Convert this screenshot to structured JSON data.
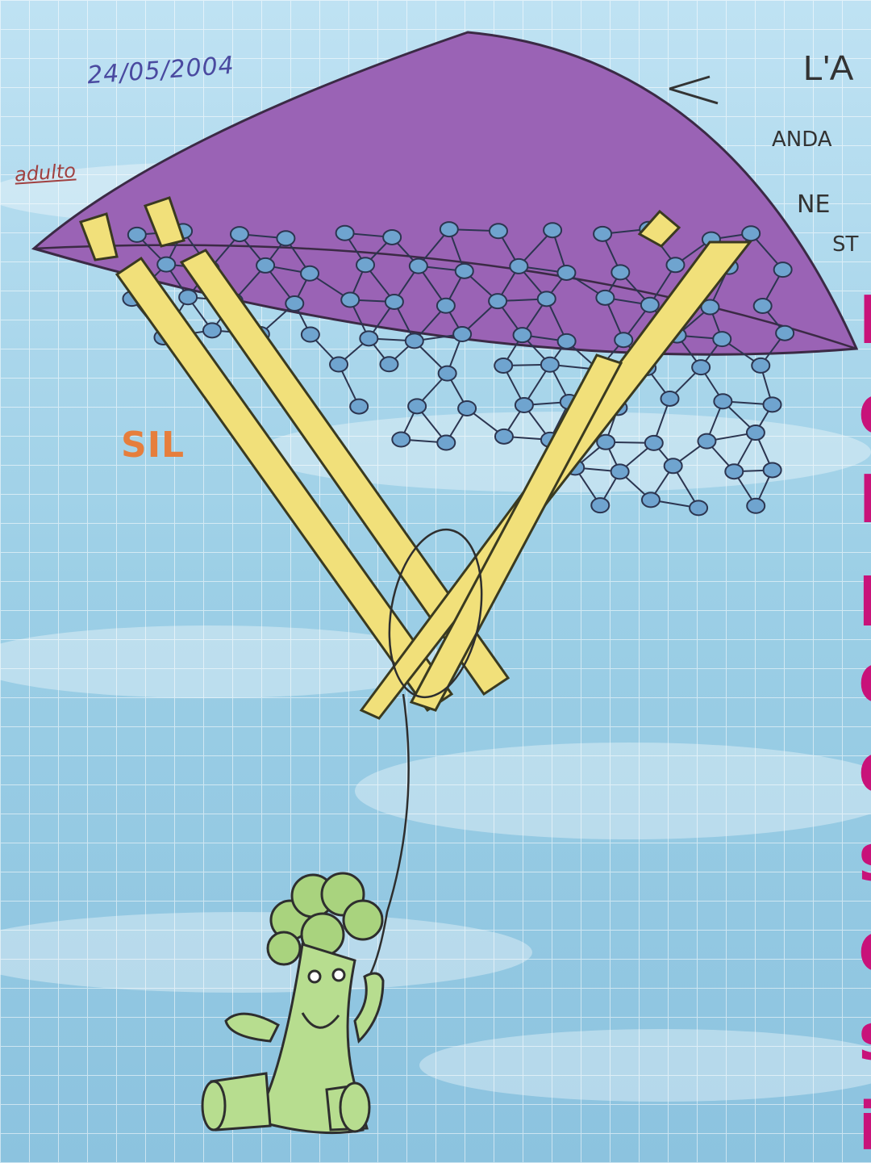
{
  "drawing": {
    "date": "24/05/2004",
    "label_adult": "adulto",
    "label_sil": "SIL",
    "top_right": [
      "L'A",
      "ANDA",
      "NE",
      "ST"
    ],
    "right_column_letters": [
      "I",
      "d",
      "I",
      "p",
      "d",
      "d",
      "s",
      "d",
      "s",
      "i"
    ]
  },
  "colors": {
    "sky": "#9fcde4",
    "parachute": "#9a63b5",
    "molecule_nodes": "#6fa4cf",
    "straps": "#f1e07a",
    "character": "#a9d37e",
    "accent_text": "#c8127a",
    "sil_text": "#e67e3c"
  }
}
